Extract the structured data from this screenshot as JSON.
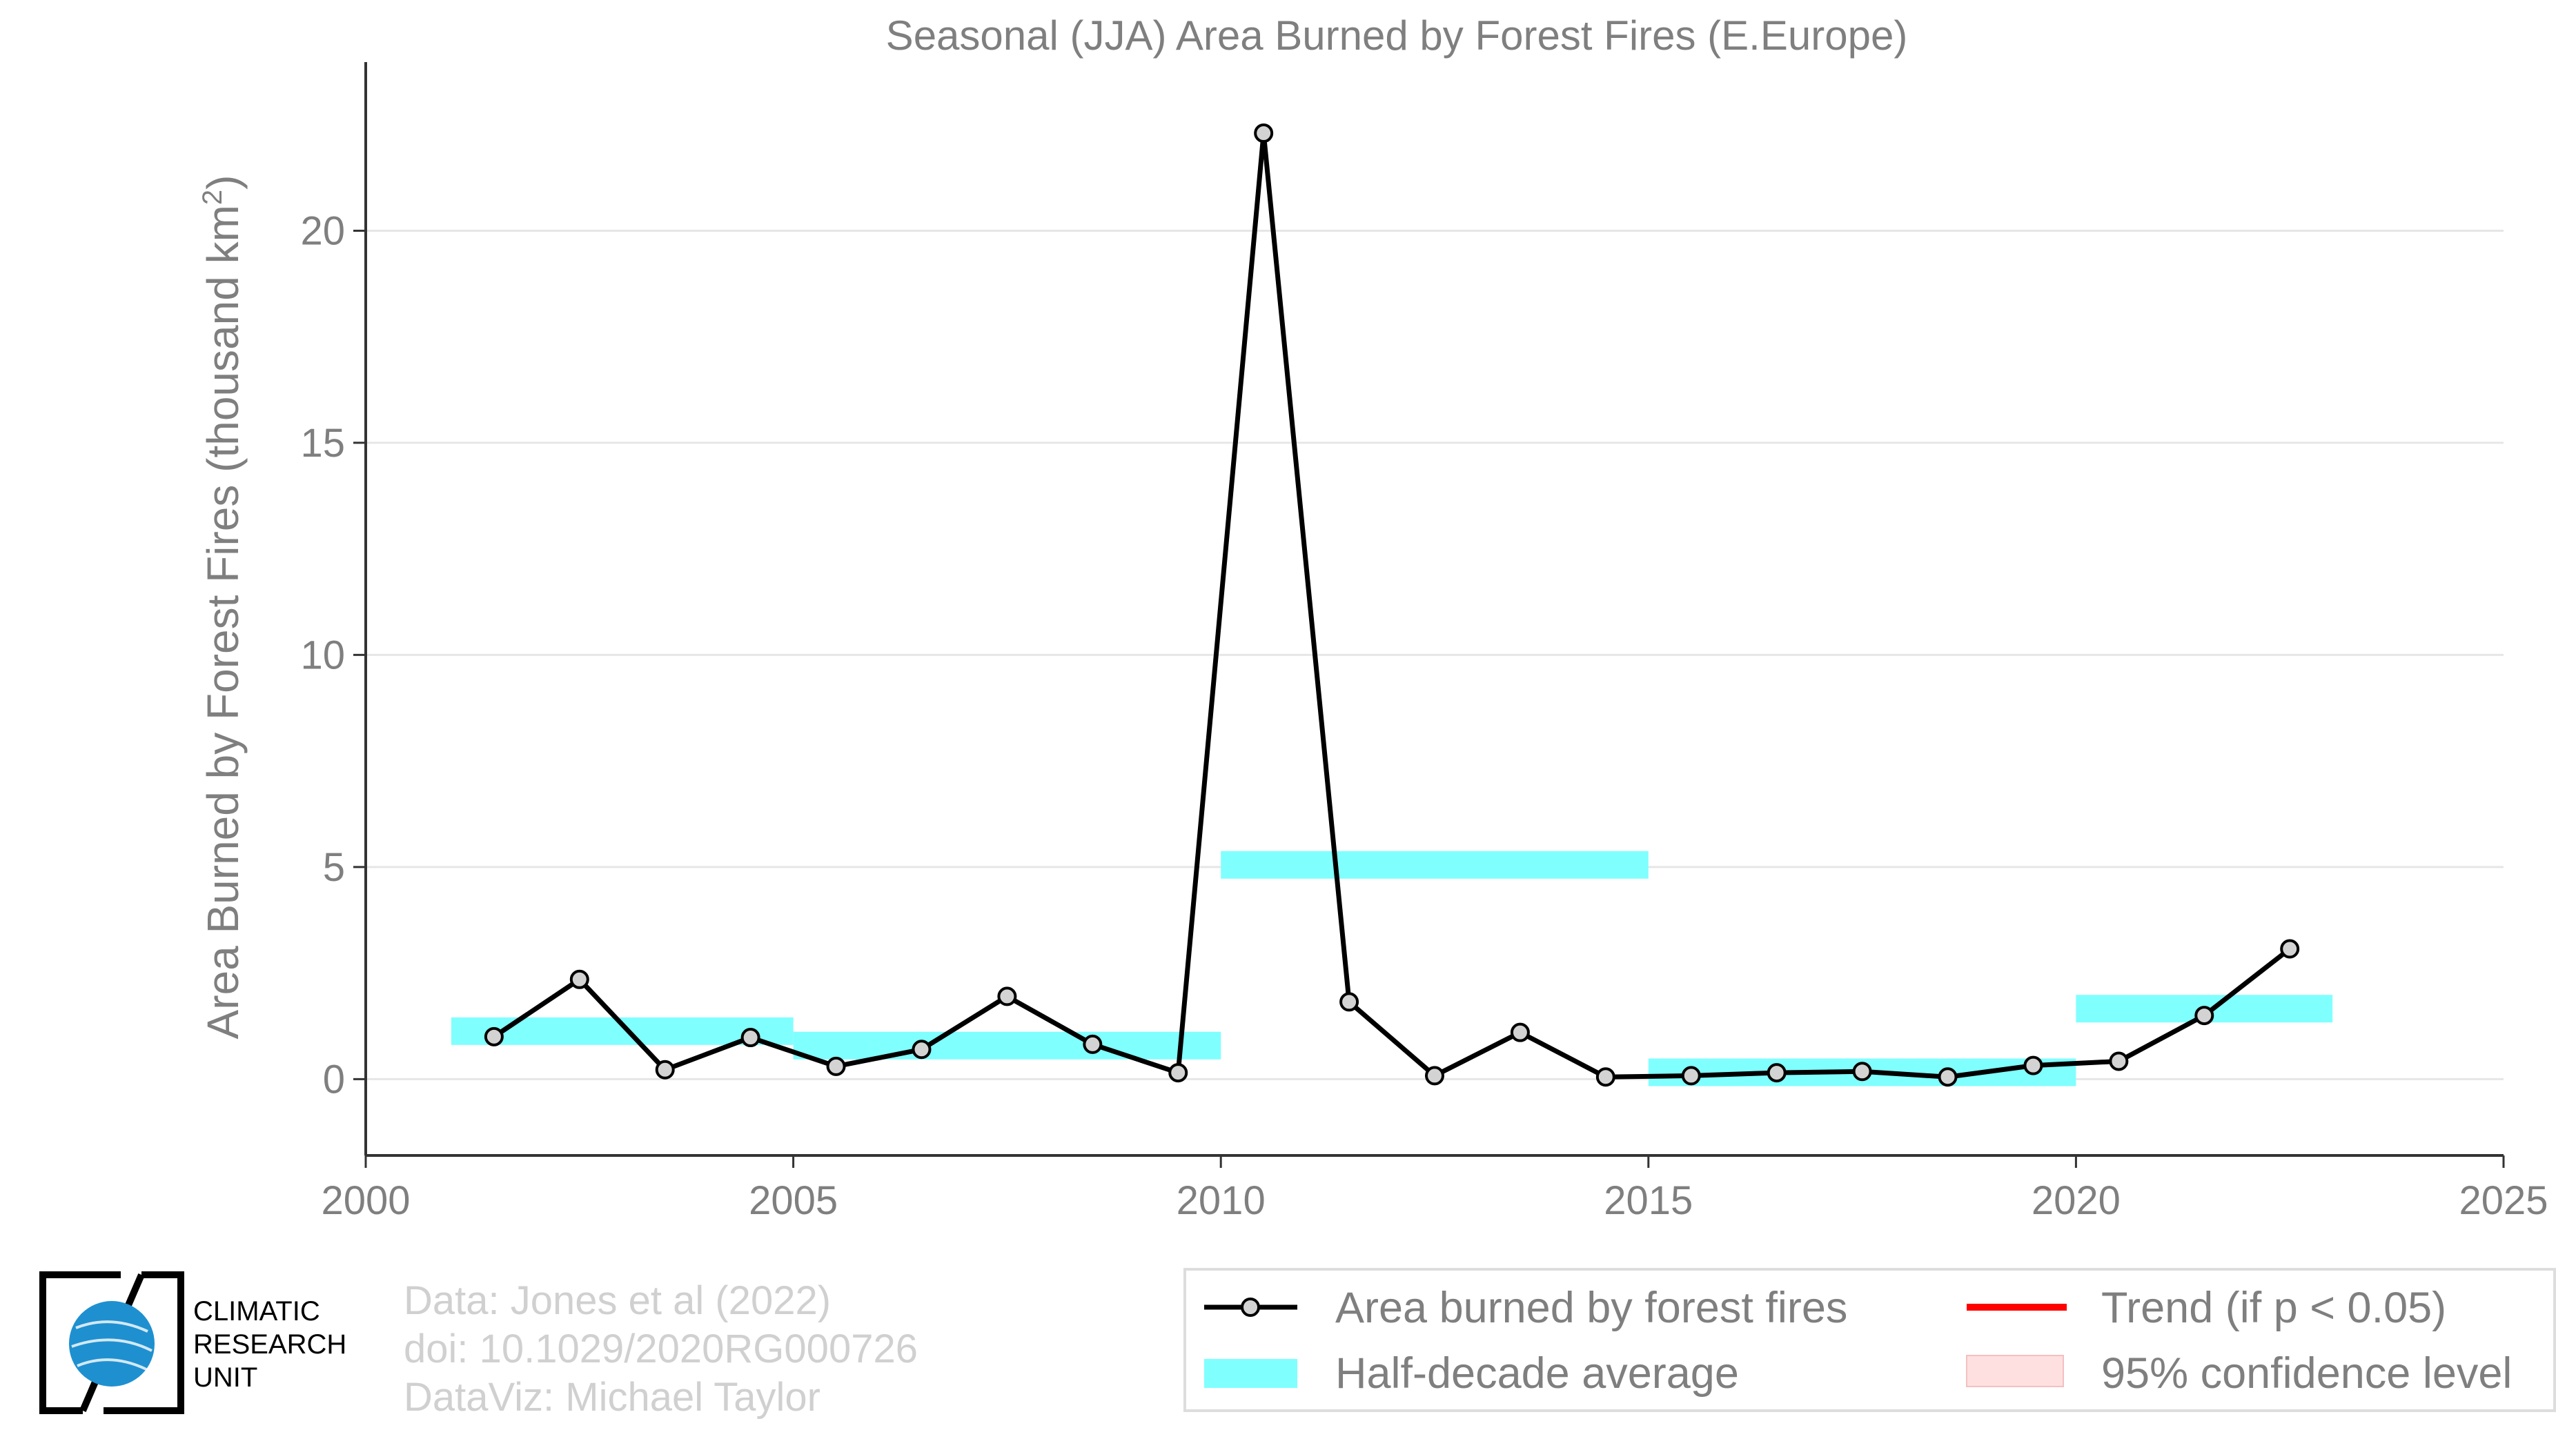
{
  "chart_data": {
    "type": "line",
    "title": "Seasonal (JJA) Area Burned by Forest Fires (E.Europe)",
    "xlabel": "",
    "ylabel": "Area Burned by Forest Fires (thousand km",
    "ylabel_superscript": "2",
    "ylabel_close": ")",
    "xlim": [
      2000,
      2025
    ],
    "ylim": [
      -1.8,
      23
    ],
    "xticks": [
      "2000",
      "2005",
      "2010",
      "2015",
      "2020",
      "2025"
    ],
    "yticks": [
      "0",
      "5",
      "10",
      "15",
      "20"
    ],
    "grid": "horizontal",
    "series": [
      {
        "name": "Area burned by forest fires",
        "color": "#000000",
        "x": [
          2001.5,
          2002.5,
          2003.5,
          2004.5,
          2005.5,
          2006.5,
          2007.5,
          2008.5,
          2009.5,
          2010.5,
          2011.5,
          2012.5,
          2013.5,
          2014.5,
          2015.5,
          2016.5,
          2017.5,
          2018.5,
          2019.5,
          2020.5,
          2021.5,
          2022.5
        ],
        "y": [
          1.0,
          2.35,
          0.22,
          0.98,
          0.3,
          0.7,
          1.95,
          0.82,
          0.15,
          22.3,
          1.82,
          0.08,
          1.1,
          0.05,
          0.08,
          0.15,
          0.18,
          0.05,
          0.32,
          0.42,
          1.5,
          3.07
        ]
      }
    ],
    "half_decade_average": {
      "name": "Half-decade average",
      "color": "#80ffff",
      "segments": [
        {
          "x0": 2001,
          "x1": 2005,
          "y": 1.13
        },
        {
          "x0": 2005,
          "x1": 2010,
          "y": 0.79
        },
        {
          "x0": 2010,
          "x1": 2015,
          "y": 5.05
        },
        {
          "x0": 2015,
          "x1": 2020,
          "y": 0.16
        },
        {
          "x0": 2020,
          "x1": 2023,
          "y": 1.66
        }
      ]
    },
    "legend": {
      "position": "bottom-right",
      "entries": [
        {
          "label": "Area burned by forest fires",
          "kind": "line-marker",
          "color": "#000000"
        },
        {
          "label": "Trend (if p < 0.05)",
          "kind": "line",
          "color": "#ff0000"
        },
        {
          "label": "Half-decade average",
          "kind": "band",
          "color": "#80ffff"
        },
        {
          "label": "95% confidence level",
          "kind": "band",
          "color": "#ffe0e0"
        }
      ]
    }
  },
  "credits": [
    "Data: Jones et al (2022)",
    "doi: 10.1029/2020RG000726",
    "DataViz: Michael Taylor"
  ],
  "logo": {
    "lines": [
      "CLIMATIC",
      "RESEARCH",
      "UNIT"
    ],
    "color": "#1e90d0"
  }
}
